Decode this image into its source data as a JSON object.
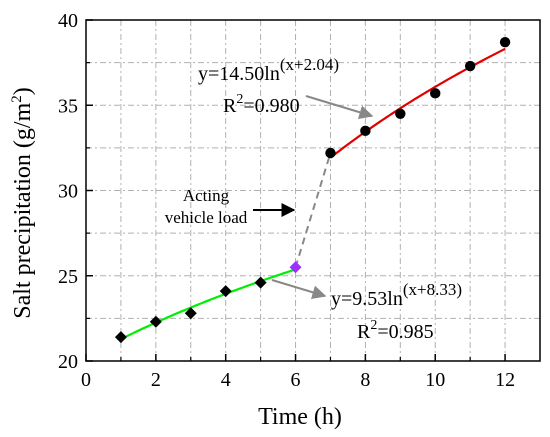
{
  "chart_data": {
    "type": "line",
    "xlabel": "Time (h)",
    "ylabel": "Salt precipitation (g/m",
    "ylabel_sup": "2",
    "ylabel_tail": ")",
    "xlim": [
      0,
      13
    ],
    "ylim": [
      20,
      40
    ],
    "xticks": [
      "0",
      "2",
      "4",
      "6",
      "8",
      "10",
      "12"
    ],
    "yticks": [
      "20",
      "25",
      "30",
      "35",
      "40"
    ],
    "grid": true,
    "series": [
      {
        "marker": "diamond",
        "color": "#00ee00",
        "x": [
          1,
          2,
          3,
          4,
          5,
          6
        ],
        "y": [
          21.4,
          22.3,
          22.8,
          24.1,
          24.6,
          25.5
        ]
      },
      {
        "marker": "circle",
        "color": "#e00000",
        "x": [
          7,
          8,
          9,
          10,
          11,
          12
        ],
        "y": [
          32.2,
          33.5,
          34.5,
          35.7,
          37.3,
          38.7
        ]
      }
    ],
    "transition_marker": {
      "x": 6,
      "y": 25.5,
      "color": "#9b30ff"
    },
    "fits": {
      "upper": {
        "coef": 14.5,
        "shift": 2.04,
        "x_from": 7,
        "x_to": 12
      },
      "lower": {
        "coef": 9.53,
        "shift": 8.33,
        "x_from": 1,
        "x_to": 6
      }
    },
    "annotations": {
      "upper_eq": "y=14.50ln",
      "upper_sup": "(x+2.04)",
      "upper_r2_pre": "R",
      "upper_r2_sup": "2",
      "upper_r2_val": "=0.980",
      "lower_eq": "y=9.53ln",
      "lower_sup": "(x+8.33)",
      "lower_r2_pre": "R",
      "lower_r2_sup": "2",
      "lower_r2_val": "=0.985",
      "load_line1": "Acting",
      "load_line2": "vehicle load"
    }
  }
}
